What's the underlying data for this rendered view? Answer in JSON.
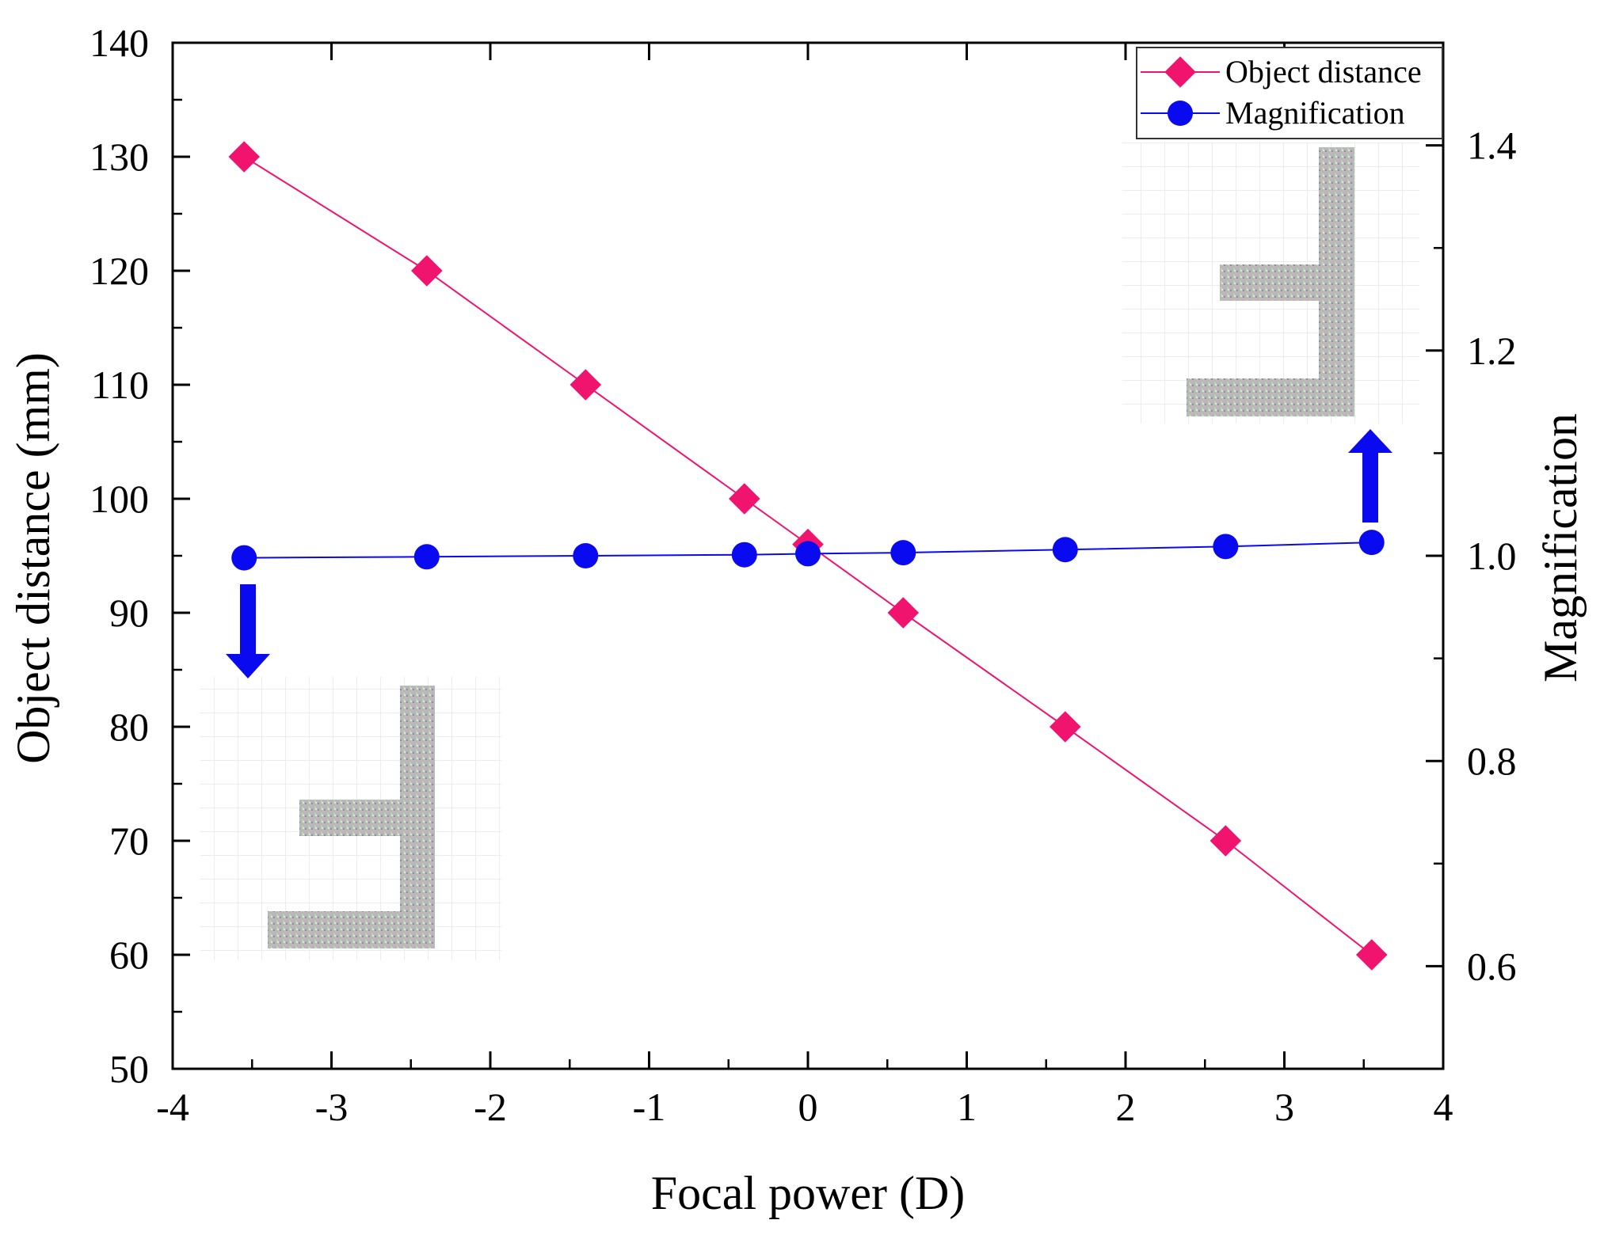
{
  "chart_data": {
    "type": "line",
    "title": "",
    "xlabel": "Focal power (D)",
    "ylabel": "Object distance (mm)",
    "y2label": "Magnification",
    "xlim": [
      -4,
      4
    ],
    "ylim": [
      50,
      140
    ],
    "y2lim": [
      0.5,
      1.5
    ],
    "xticks": [
      -4,
      -3,
      -2,
      -1,
      0,
      1,
      2,
      3,
      4
    ],
    "xtick_labels": [
      "-4",
      "-3",
      "-2",
      "-1",
      "0",
      "1",
      "2",
      "3",
      "4"
    ],
    "yticks": [
      50,
      60,
      70,
      80,
      90,
      100,
      110,
      120,
      130,
      140
    ],
    "ytick_labels": [
      "50",
      "60",
      "70",
      "80",
      "90",
      "100",
      "110",
      "120",
      "130",
      "140"
    ],
    "y2ticks": [
      0.6,
      0.8,
      1.0,
      1.2,
      1.4
    ],
    "y2tick_labels": [
      "0.6",
      "0.8",
      "1.0",
      "1.2",
      "1.4"
    ],
    "grid": false,
    "legend_position": "top-right",
    "series": [
      {
        "name": "Object distance",
        "axis": "left",
        "color": "#f0146e",
        "marker": "diamond",
        "x": [
          -3.55,
          -2.4,
          -1.4,
          -0.4,
          0.0,
          0.6,
          1.62,
          2.63,
          3.55
        ],
        "values": [
          130,
          120,
          110,
          100,
          96,
          90,
          80,
          70,
          60
        ]
      },
      {
        "name": "Magnification",
        "axis": "right",
        "color": "#0a0af0",
        "marker": "circle",
        "x": [
          -3.55,
          -2.4,
          -1.4,
          -0.4,
          0.0,
          0.6,
          1.62,
          2.63,
          3.55
        ],
        "values": [
          0.998,
          0.999,
          1.0,
          1.001,
          1.002,
          1.003,
          1.006,
          1.009,
          1.013
        ]
      }
    ],
    "insets": [
      {
        "name": "inset-image-left",
        "attached_to": "Magnification",
        "arrow_direction": "down"
      },
      {
        "name": "inset-image-right",
        "attached_to": "Magnification",
        "arrow_direction": "up"
      }
    ]
  }
}
